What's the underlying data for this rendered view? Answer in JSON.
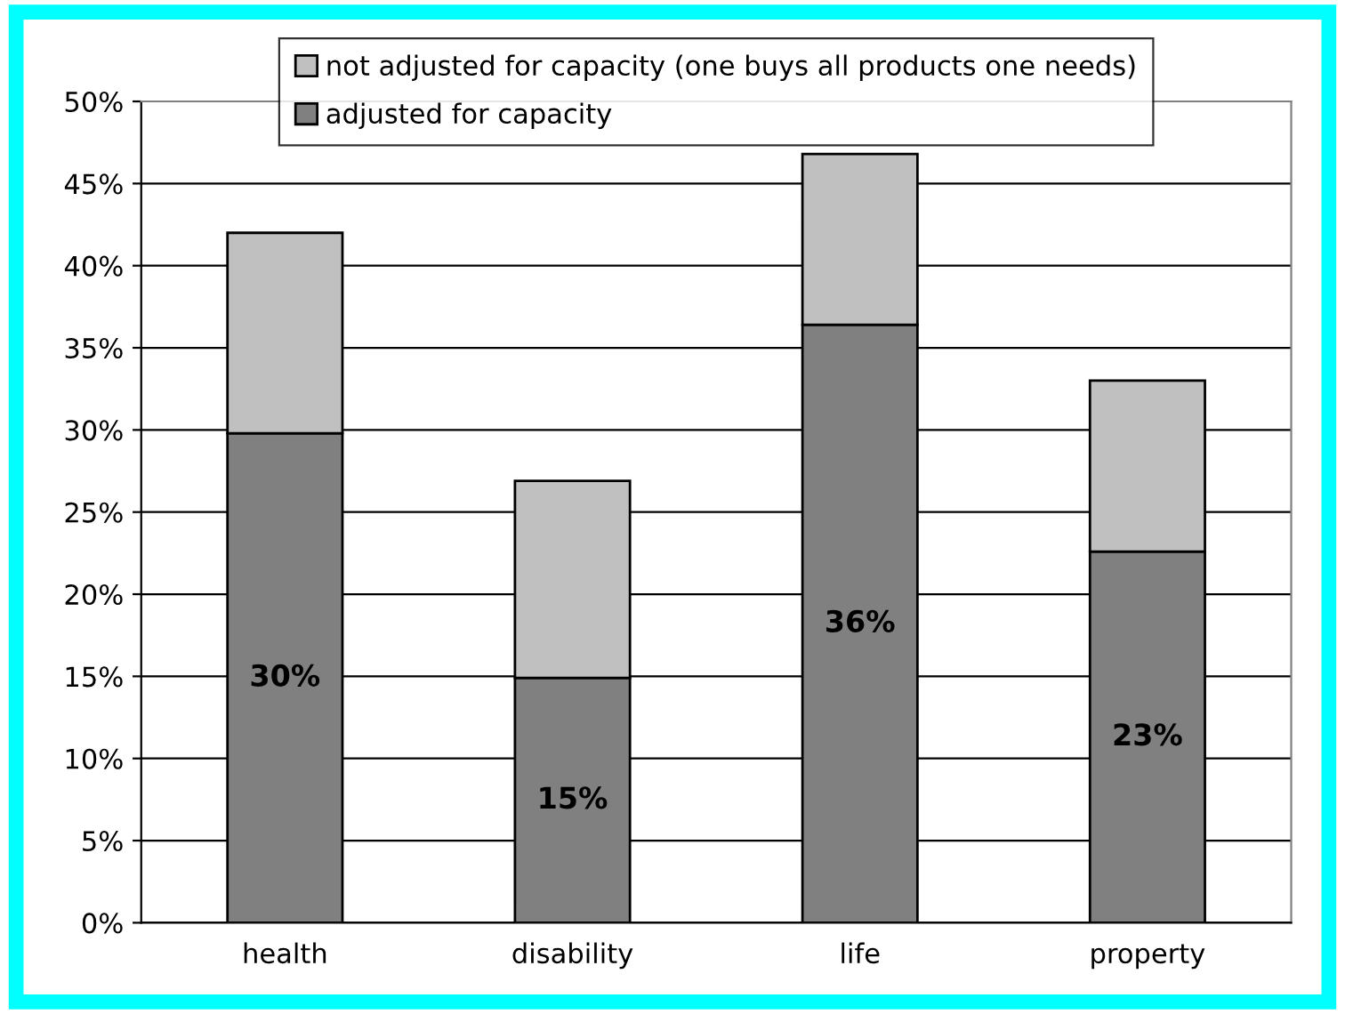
{
  "chart_data": {
    "type": "bar",
    "stacked": true,
    "categories": [
      "health",
      "disability",
      "life",
      "property"
    ],
    "series": [
      {
        "name": "adjusted for capacity",
        "color": "#808080",
        "values": [
          29.8,
          14.9,
          36.4,
          22.6
        ],
        "value_labels": [
          "30%",
          "15%",
          "36%",
          "23%"
        ]
      },
      {
        "name": "not adjusted for capacity (one buys all products one needs)",
        "color": "#c0c0c0",
        "values": [
          12.2,
          12.0,
          10.4,
          10.4
        ]
      }
    ],
    "ylim": [
      0,
      50
    ],
    "yticks": [
      {
        "value": 0,
        "label": "0%"
      },
      {
        "value": 5,
        "label": "5%"
      },
      {
        "value": 10,
        "label": "10%"
      },
      {
        "value": 15,
        "label": "15%"
      },
      {
        "value": 20,
        "label": "20%"
      },
      {
        "value": 25,
        "label": "25%"
      },
      {
        "value": 30,
        "label": "30%"
      },
      {
        "value": 35,
        "label": "35%"
      },
      {
        "value": 40,
        "label": "40%"
      },
      {
        "value": 45,
        "label": "45%"
      },
      {
        "value": 50,
        "label": "50%"
      }
    ],
    "grid": "y",
    "legend": "top"
  }
}
